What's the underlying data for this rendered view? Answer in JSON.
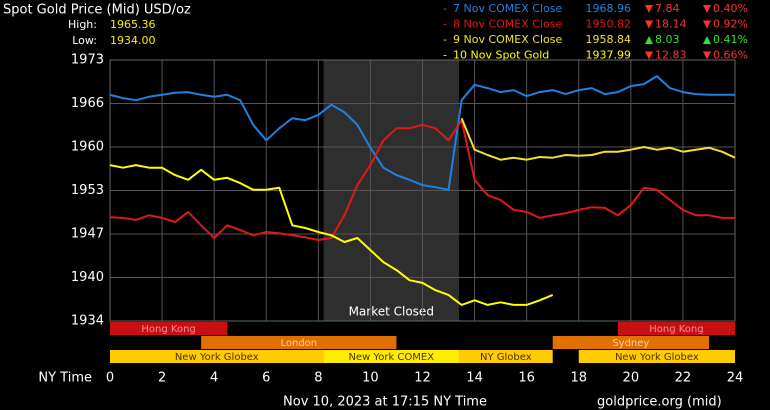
{
  "chart_data": {
    "type": "line",
    "title": "Spot Gold Price (Mid) USD/oz",
    "high_label": "High:",
    "high": "1965.36",
    "low_label": "Low:",
    "low": "1934.00",
    "x_label": "NY Time",
    "footer": "Nov 10, 2023 at 17:15 NY Time",
    "source": "goldprice.org (mid)",
    "x": [
      0,
      0.5,
      1,
      1.5,
      2,
      2.5,
      3,
      3.5,
      4,
      4.5,
      5,
      5.5,
      6,
      6.5,
      7,
      7.5,
      8,
      8.5,
      9,
      9.5,
      10,
      10.5,
      11,
      11.5,
      12,
      12.5,
      13,
      13.5,
      14,
      14.5,
      15,
      15.5,
      16,
      16.5,
      17,
      17.5,
      18,
      18.5,
      19,
      19.5,
      20,
      20.5,
      21,
      21.5,
      22,
      22.5,
      23,
      23.5,
      24
    ],
    "xlim": [
      0,
      24
    ],
    "xticks": [
      0,
      2,
      4,
      6,
      8,
      10,
      12,
      14,
      16,
      18,
      20,
      22,
      24
    ],
    "ylim": [
      1934,
      1973
    ],
    "yticks": [
      1934,
      {
        "value": 1940.5,
        "label": "1940"
      },
      1947,
      {
        "value": 1953.5,
        "label": "1953"
      },
      1960,
      {
        "value": 1966.5,
        "label": "1966"
      },
      1973
    ],
    "grid": true,
    "closed": {
      "start": 8.2,
      "end": 13.4,
      "label": "Market Closed"
    },
    "sessions": [
      {
        "name": "Hong Kong",
        "start": 0,
        "end": 4.5,
        "row": 0,
        "color": "#c81010",
        "text_color": "#f09090"
      },
      {
        "name": "Hong Kong",
        "start": 19.5,
        "end": 24,
        "row": 0,
        "color": "#c81010",
        "text_color": "#f09090"
      },
      {
        "name": "London",
        "start": 3.5,
        "end": 11,
        "row": 1,
        "color": "#e07000",
        "text_color": "#ffd090"
      },
      {
        "name": "Sydney",
        "start": 17,
        "end": 23,
        "row": 1,
        "color": "#e07000",
        "text_color": "#ffd090"
      },
      {
        "name": "New York Globex",
        "start": 0,
        "end": 8.2,
        "row": 2,
        "color": "#ffcc00",
        "text_color": "#503000"
      },
      {
        "name": "New York COMEX",
        "start": 8.2,
        "end": 13.4,
        "row": 2,
        "color": "#ffee00",
        "text_color": "#503000"
      },
      {
        "name": "NY Globex",
        "start": 13.4,
        "end": 17,
        "row": 2,
        "color": "#ffcc00",
        "text_color": "#503000"
      },
      {
        "name": "New York Globex",
        "start": 18,
        "end": 24,
        "row": 2,
        "color": "#ffcc00",
        "text_color": "#503000"
      }
    ],
    "series": [
      {
        "name": "7 Nov COMEX Close",
        "color": "#2080e0",
        "close": "1968.96",
        "change": "7.84",
        "change_pct": "0.40%",
        "direction": "down",
        "values": [
          1967.8,
          1967.3,
          1967.0,
          1967.5,
          1967.8,
          1968.1,
          1968.2,
          1967.8,
          1967.5,
          1967.8,
          1967.0,
          1963.3,
          1961.0,
          1962.8,
          1964.3,
          1964.0,
          1964.8,
          1966.3,
          1965.2,
          1963.3,
          1959.9,
          1956.9,
          1955.8,
          1955.1,
          1954.3,
          1954.0,
          1953.6,
          1967.0,
          1969.3,
          1968.8,
          1968.2,
          1968.5,
          1967.6,
          1968.2,
          1968.5,
          1967.9,
          1968.5,
          1968.8,
          1967.9,
          1968.2,
          1969.1,
          1969.4,
          1970.6,
          1968.8,
          1968.2,
          1967.9,
          1967.8,
          1967.8,
          1967.8
        ]
      },
      {
        "name": "8 Nov COMEX Close",
        "color": "#e01818",
        "close": "1950.82",
        "change": "18.14",
        "change_pct": "0.92%",
        "direction": "down",
        "values": [
          1949.5,
          1949.4,
          1949.1,
          1949.8,
          1949.4,
          1948.8,
          1950.3,
          1948.3,
          1946.4,
          1948.3,
          1947.6,
          1946.8,
          1947.3,
          1947.1,
          1946.8,
          1946.5,
          1946.1,
          1946.4,
          1949.8,
          1954.3,
          1957.3,
          1961.0,
          1962.8,
          1962.8,
          1963.3,
          1962.8,
          1961.0,
          1964.0,
          1955.1,
          1952.8,
          1952.1,
          1950.6,
          1950.3,
          1949.4,
          1949.8,
          1950.1,
          1950.6,
          1951.0,
          1950.9,
          1949.8,
          1951.3,
          1953.9,
          1953.6,
          1952.1,
          1950.6,
          1949.8,
          1949.8,
          1949.4,
          1949.4
        ]
      },
      {
        "name": "9 Nov COMEX Close",
        "color": "#f0e030",
        "close": "1958.84",
        "change": "8.03",
        "change_pct": "0.41%",
        "direction": "up",
        "values": [
          null,
          null,
          null,
          null,
          null,
          null,
          null,
          null,
          null,
          null,
          null,
          null,
          null,
          null,
          null,
          null,
          null,
          null,
          null,
          null,
          null,
          null,
          null,
          null,
          null,
          null,
          null,
          1964.3,
          1959.6,
          1958.8,
          1958.1,
          1958.4,
          1958.1,
          1958.5,
          1958.4,
          1958.8,
          1958.7,
          1958.8,
          1959.3,
          1959.3,
          1959.6,
          1960.0,
          1959.6,
          1959.9,
          1959.3,
          1959.6,
          1959.9,
          1959.3,
          1958.4
        ]
      },
      {
        "name": "10 Nov Spot Gold",
        "color": "#ffff00",
        "close": "1937.99",
        "change": "12.83",
        "change_pct": "0.66%",
        "direction": "down",
        "values": [
          1957.3,
          1956.9,
          1957.3,
          1956.9,
          1956.9,
          1955.8,
          1955.1,
          1956.6,
          1955.1,
          1955.4,
          1954.6,
          1953.6,
          1953.6,
          1953.9,
          1948.3,
          1947.9,
          1947.3,
          1946.8,
          1945.8,
          1946.4,
          1944.6,
          1942.8,
          1941.6,
          1940.1,
          1939.7,
          1938.6,
          1937.9,
          1936.4,
          1937.1,
          1936.4,
          1936.8,
          1936.4,
          1936.4,
          1937.1,
          1937.9,
          null,
          null,
          null,
          null,
          null,
          null,
          null,
          null,
          null,
          null,
          null,
          null,
          null,
          null
        ]
      }
    ]
  }
}
